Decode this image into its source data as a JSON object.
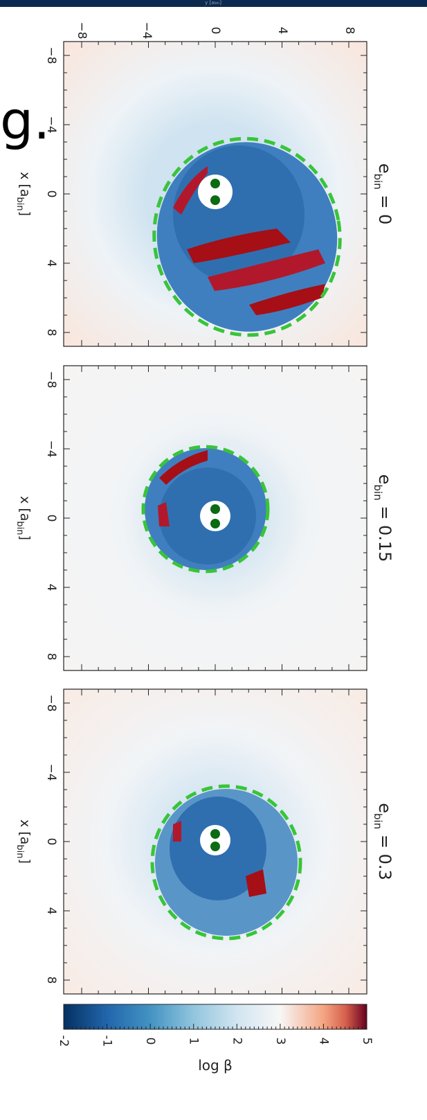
{
  "header": {
    "text_main": "y [a",
    "text_sub": "bin",
    "text_end": "]"
  },
  "overlay_text": "g.",
  "panels": [
    {
      "title": {
        "symbol": "e",
        "subscript": "bin",
        "value": " = 0"
      }
    },
    {
      "title": {
        "symbol": "e",
        "subscript": "bin",
        "value": " = 0.15"
      }
    },
    {
      "title": {
        "symbol": "e",
        "subscript": "bin",
        "value": " = 0.3"
      }
    }
  ],
  "axis_ticks": [
    "−8",
    "−4",
    "0",
    "4",
    "8"
  ],
  "x_label": {
    "main": "x [a",
    "sub": "bin",
    "end": "]"
  },
  "colorbar": {
    "ticks": [
      "-2",
      "-1",
      "0",
      "1",
      "2",
      "3",
      "4",
      "5"
    ],
    "label": "log β"
  }
}
